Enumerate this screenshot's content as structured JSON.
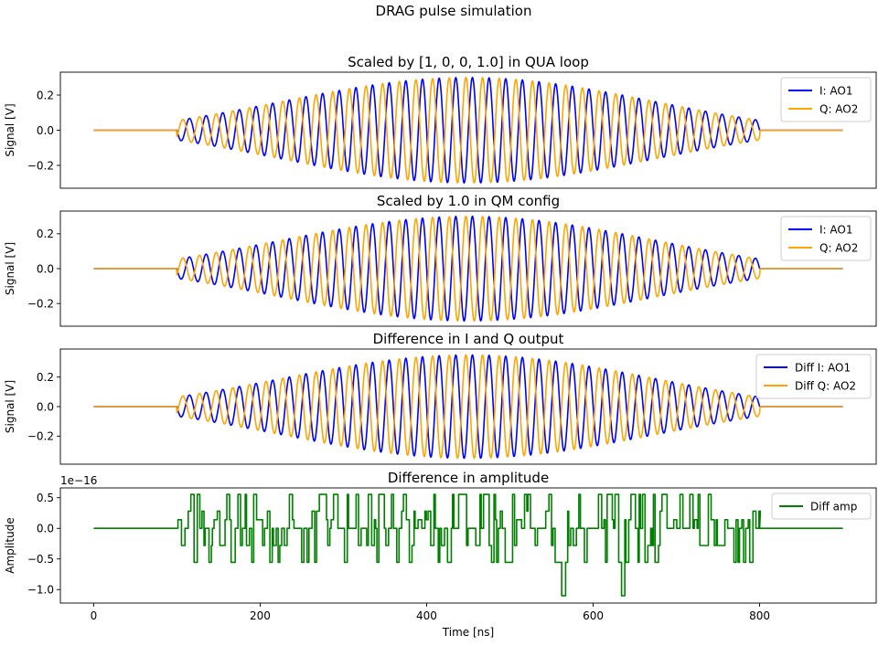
{
  "figure": {
    "suptitle": "DRAG pulse simulation"
  },
  "chart_data": [
    {
      "type": "line",
      "title": "Scaled by [1, 0, 0, 1.0] in QUA loop",
      "xlabel": "",
      "ylabel": "Signal [V]",
      "xlim": [
        -40,
        940
      ],
      "ylim": [
        -0.33,
        0.33
      ],
      "yticks": [
        -0.2,
        0.0,
        0.2
      ],
      "ytick_labels": [
        "−0.2",
        "0.0",
        "0.2"
      ],
      "show_xticklabels": false,
      "legend": "top-right",
      "t_range": [
        0,
        900
      ],
      "pulse_window": [
        100,
        800
      ],
      "frequency_GHz": 0.05,
      "series": [
        {
          "name": "I: AO1",
          "color": "#0000ff",
          "kind": "drag_i",
          "peak_amplitude": 0.3
        },
        {
          "name": "Q: AO2",
          "color": "#ffa500",
          "kind": "drag_q",
          "peak_amplitude": 0.3
        }
      ]
    },
    {
      "type": "line",
      "title": "Scaled by 1.0 in QM config",
      "xlabel": "",
      "ylabel": "Signal [V]",
      "xlim": [
        -40,
        940
      ],
      "ylim": [
        -0.33,
        0.33
      ],
      "yticks": [
        -0.2,
        0.0,
        0.2
      ],
      "ytick_labels": [
        "−0.2",
        "0.0",
        "0.2"
      ],
      "show_xticklabels": false,
      "legend": "top-right",
      "t_range": [
        0,
        900
      ],
      "pulse_window": [
        100,
        800
      ],
      "frequency_GHz": 0.05,
      "series": [
        {
          "name": "I: AO1",
          "color": "#0000ff",
          "kind": "drag_i",
          "peak_amplitude": 0.3
        },
        {
          "name": "Q: AO2",
          "color": "#ffa500",
          "kind": "drag_q",
          "peak_amplitude": 0.3
        }
      ]
    },
    {
      "type": "line",
      "title": "Difference in I and Q output",
      "xlabel": "",
      "ylabel": "Signal [V]",
      "xlim": [
        -40,
        940
      ],
      "ylim": [
        -0.39,
        0.39
      ],
      "yticks": [
        -0.2,
        0.0,
        0.2
      ],
      "ytick_labels": [
        "−0.2",
        "0.0",
        "0.2"
      ],
      "show_xticklabels": false,
      "legend": "top-right",
      "t_range": [
        0,
        900
      ],
      "pulse_window": [
        100,
        800
      ],
      "frequency_GHz": 0.05,
      "series": [
        {
          "name": "Diff I: AO1",
          "color": "#0000ff",
          "kind": "drag_i",
          "peak_amplitude": 0.35
        },
        {
          "name": "Diff Q: AO2",
          "color": "#ffa500",
          "kind": "drag_q",
          "peak_amplitude": 0.35
        }
      ]
    },
    {
      "type": "line",
      "title": "Difference in amplitude",
      "xlabel": "Time [ns]",
      "ylabel": "Amplitude",
      "offset_text": "1e−16",
      "xlim": [
        -40,
        940
      ],
      "ylim": [
        -1.22,
        0.66
      ],
      "xticks": [
        0,
        200,
        400,
        600,
        800
      ],
      "xtick_labels": [
        "0",
        "200",
        "400",
        "600",
        "800"
      ],
      "yticks": [
        -1.0,
        -0.5,
        0.0,
        0.5
      ],
      "ytick_labels": [
        "−1.0",
        "−0.5",
        "0.0",
        "0.5"
      ],
      "show_xticklabels": true,
      "legend": "top-right",
      "t_range": [
        0,
        900
      ],
      "pulse_window": [
        100,
        800
      ],
      "series": [
        {
          "name": "Diff amp",
          "color": "#008000",
          "kind": "noise",
          "levels": [
            -1.1,
            -0.555,
            -0.28,
            0.0,
            0.14,
            0.28,
            0.555
          ],
          "spikes": [
            {
              "t": 562,
              "v": -1.1
            },
            {
              "t": 636,
              "v": -1.1
            }
          ]
        }
      ]
    }
  ]
}
